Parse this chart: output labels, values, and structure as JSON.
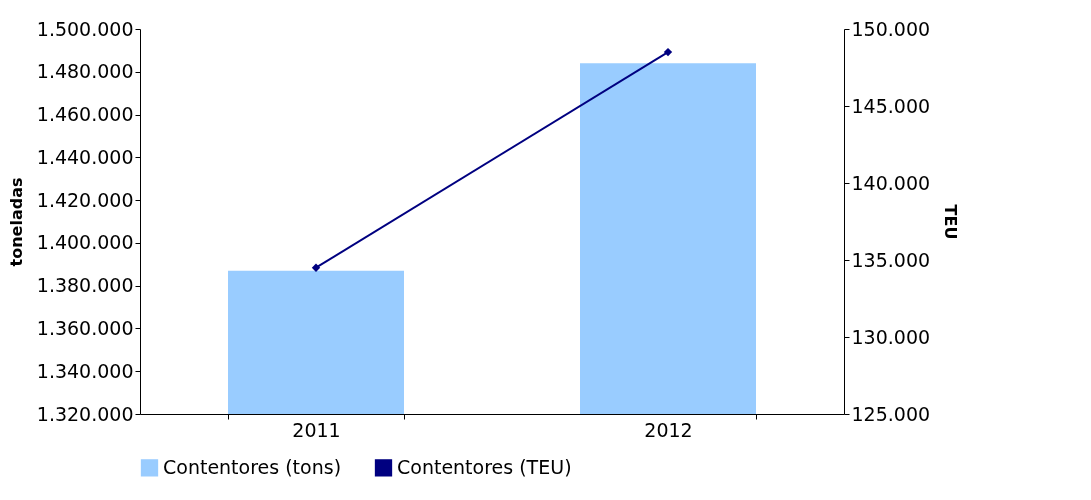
{
  "chart_data": {
    "type": "bar",
    "ylabel": "toneladas",
    "y2label": "TEU",
    "categories": [
      "2011",
      "2012"
    ],
    "series": [
      {
        "name": "Contentores (tons)",
        "color": "#99ccff",
        "values": [
          1387000,
          1484000
        ]
      },
      {
        "name": "Contentores (TEU)",
        "type": "line",
        "axis": "y2",
        "color": "#000080",
        "values": [
          134500,
          148500
        ]
      }
    ],
    "ylim": [
      1320000,
      1500000
    ],
    "yticks": [
      {
        "value": 1320000,
        "label": "1.320.000"
      },
      {
        "value": 1340000,
        "label": "1.340.000"
      },
      {
        "value": 1360000,
        "label": "1.360.000"
      },
      {
        "value": 1380000,
        "label": "1.380.000"
      },
      {
        "value": 1400000,
        "label": "1.400.000"
      },
      {
        "value": 1420000,
        "label": "1.420.000"
      },
      {
        "value": 1440000,
        "label": "1.440.000"
      },
      {
        "value": 1460000,
        "label": "1.460.000"
      },
      {
        "value": 1480000,
        "label": "1.480.000"
      },
      {
        "value": 1500000,
        "label": "1.500.000"
      }
    ],
    "y2lim": [
      125000,
      150000
    ],
    "y2ticks": [
      {
        "value": 125000,
        "label": "125.000"
      },
      {
        "value": 130000,
        "label": "130.000"
      },
      {
        "value": 135000,
        "label": "135.000"
      },
      {
        "value": 140000,
        "label": "140.000"
      },
      {
        "value": 145000,
        "label": "145.000"
      },
      {
        "value": 150000,
        "label": "150.000"
      }
    ],
    "grid": false,
    "legend": "bottom",
    "marker": "diamond"
  }
}
